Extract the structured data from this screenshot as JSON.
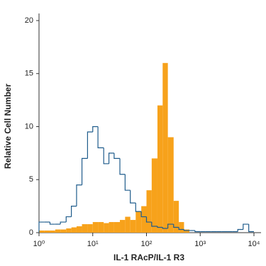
{
  "chart_data": {
    "type": "histogram",
    "xlabel": "IL-1 RAcP/IL-1 R3",
    "ylabel": "Relative Cell Number",
    "log_x": true,
    "xlim": [
      1,
      10000
    ],
    "ylim": [
      0,
      20
    ],
    "xticks": [
      {
        "value": 1,
        "label": "10⁰"
      },
      {
        "value": 10,
        "label": "10¹"
      },
      {
        "value": 100,
        "label": "10²"
      },
      {
        "value": 1000,
        "label": "10³"
      },
      {
        "value": 10000,
        "label": "10⁴"
      }
    ],
    "yticks": [
      0,
      5,
      10,
      15,
      20
    ],
    "bins": [
      1,
      1.25,
      1.6,
      2,
      2.5,
      3.2,
      4,
      5,
      6.3,
      8,
      10,
      12.5,
      16,
      20,
      25,
      32,
      40,
      50,
      63,
      80,
      100,
      125,
      160,
      200,
      250,
      320,
      400,
      500,
      630,
      800,
      1000,
      1250,
      1600,
      2000,
      2500,
      3200,
      4000,
      5000,
      6300,
      8000,
      10000
    ],
    "series": [
      {
        "color": "#f7a21b",
        "fill": true,
        "values": [
          0.2,
          0.2,
          0.2,
          0.3,
          0.3,
          0.4,
          0.5,
          0.6,
          0.8,
          0.8,
          1,
          1,
          0.9,
          1,
          1,
          1.2,
          1.5,
          1.2,
          2,
          2.5,
          4,
          7,
          12,
          16,
          9,
          3,
          1,
          0.3,
          0,
          0,
          0,
          0,
          0,
          0,
          0,
          0,
          0,
          0,
          0,
          0
        ]
      },
      {
        "color": "#1f5c8c",
        "fill": false,
        "values": [
          1,
          1,
          0.8,
          0.8,
          1,
          1.5,
          2.5,
          4.5,
          7,
          9.5,
          10,
          8,
          6.5,
          7.5,
          7,
          5.5,
          4,
          2.8,
          2,
          1.5,
          1,
          0.6,
          0.5,
          0.4,
          0.8,
          0.5,
          0.3,
          0.2,
          0.2,
          0.1,
          0.1,
          0.1,
          0.1,
          0.1,
          0.1,
          0.1,
          0.1,
          0.3,
          0.8,
          0.1
        ]
      }
    ]
  }
}
